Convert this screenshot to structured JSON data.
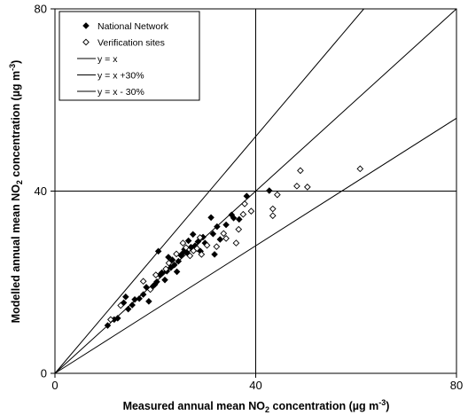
{
  "chart_data": {
    "type": "scatter",
    "xlabel": {
      "pre": "Measured annual mean NO",
      "sub": "2",
      "post": " concentration (µg m",
      "sup": "-3",
      "end": ")"
    },
    "ylabel": {
      "pre": "Modelled annual mean NO",
      "sub": "2",
      "post": " concentration (µg m",
      "sup": "-3",
      "end": ")"
    },
    "xlim": [
      0,
      80
    ],
    "ylim": [
      0,
      80
    ],
    "xticks": [
      "0",
      "40",
      "80"
    ],
    "yticks": [
      "0",
      "40",
      "80"
    ],
    "reference_lines": [
      {
        "name": "y = x",
        "slope": 1.0
      },
      {
        "name": "y = x +30%",
        "slope": 1.3
      },
      {
        "name": "y = x - 30%",
        "slope": 0.7
      }
    ],
    "crosshair": {
      "x": 40,
      "y": 40
    },
    "legend_position": "top-left",
    "series": [
      {
        "name": "National Network",
        "marker": "filled-diamond",
        "points": [
          [
            10.5,
            10.5
          ],
          [
            11.8,
            11.8
          ],
          [
            12.5,
            12.1
          ],
          [
            13.7,
            15.5
          ],
          [
            14.1,
            16.8
          ],
          [
            14.6,
            14.1
          ],
          [
            15.4,
            15.0
          ],
          [
            15.9,
            16.2
          ],
          [
            16.8,
            16.4
          ],
          [
            17.6,
            17.3
          ],
          [
            18.2,
            18.9
          ],
          [
            18.7,
            15.8
          ],
          [
            19.6,
            19.2
          ],
          [
            19.9,
            19.5
          ],
          [
            20.3,
            20.1
          ],
          [
            20.6,
            26.8
          ],
          [
            20.9,
            21.6
          ],
          [
            21.3,
            22.1
          ],
          [
            21.9,
            20.5
          ],
          [
            22.3,
            22.4
          ],
          [
            22.6,
            25.5
          ],
          [
            23.1,
            23.2
          ],
          [
            23.4,
            24.9
          ],
          [
            23.8,
            23.8
          ],
          [
            24.3,
            22.3
          ],
          [
            24.6,
            24.6
          ],
          [
            25.1,
            25.9
          ],
          [
            25.4,
            26.3
          ],
          [
            25.8,
            27.2
          ],
          [
            26.3,
            26.5
          ],
          [
            26.6,
            29.1
          ],
          [
            27.1,
            27.7
          ],
          [
            27.5,
            30.5
          ],
          [
            27.9,
            28.0
          ],
          [
            28.5,
            28.9
          ],
          [
            29.0,
            26.8
          ],
          [
            29.5,
            29.9
          ],
          [
            29.9,
            28.6
          ],
          [
            31.1,
            34.2
          ],
          [
            31.5,
            30.6
          ],
          [
            31.8,
            26.1
          ],
          [
            32.3,
            32.2
          ],
          [
            32.9,
            29.4
          ],
          [
            34.1,
            32.6
          ],
          [
            35.2,
            34.8
          ],
          [
            35.6,
            34.1
          ],
          [
            36.7,
            33.8
          ],
          [
            38.2,
            38.9
          ],
          [
            42.7,
            40.1
          ]
        ]
      },
      {
        "name": "Verification sites",
        "marker": "open-diamond",
        "points": [
          [
            11.1,
            11.8
          ],
          [
            13.1,
            14.9
          ],
          [
            17.6,
            20.2
          ],
          [
            19.0,
            18.4
          ],
          [
            20.1,
            21.6
          ],
          [
            22.1,
            22.9
          ],
          [
            22.7,
            24.2
          ],
          [
            24.2,
            26.2
          ],
          [
            25.5,
            28.6
          ],
          [
            26.1,
            27.6
          ],
          [
            26.9,
            25.8
          ],
          [
            27.6,
            26.9
          ],
          [
            28.3,
            27.4
          ],
          [
            28.9,
            29.8
          ],
          [
            29.2,
            26.1
          ],
          [
            30.3,
            28.1
          ],
          [
            32.2,
            27.8
          ],
          [
            33.6,
            30.7
          ],
          [
            34.1,
            29.6
          ],
          [
            36.1,
            28.6
          ],
          [
            36.6,
            31.6
          ],
          [
            37.5,
            34.9
          ],
          [
            37.8,
            37.2
          ],
          [
            39.1,
            35.6
          ],
          [
            43.4,
            36.1
          ],
          [
            43.4,
            34.6
          ],
          [
            44.3,
            39.2
          ],
          [
            48.2,
            41.1
          ],
          [
            48.9,
            44.5
          ],
          [
            50.3,
            40.9
          ],
          [
            60.8,
            44.9
          ]
        ]
      }
    ]
  }
}
